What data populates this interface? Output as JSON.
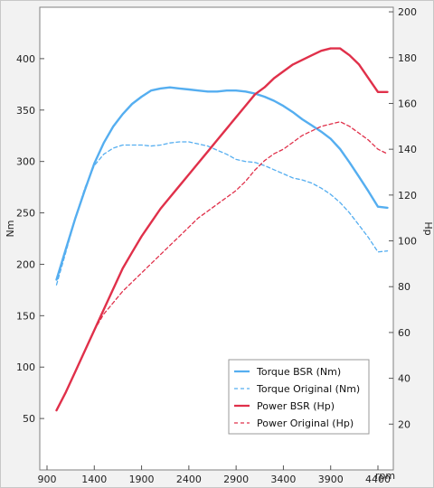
{
  "chart_data": {
    "type": "line",
    "xlabel": "rpm",
    "ylabel_left": "Nm",
    "ylabel_right": "Hp",
    "x_ticks": [
      900,
      1400,
      1900,
      2400,
      2900,
      3400,
      3900,
      4400
    ],
    "y_left_ticks": [
      50,
      100,
      150,
      200,
      250,
      300,
      350,
      400
    ],
    "y_right_ticks": [
      20,
      40,
      60,
      80,
      100,
      120,
      140,
      160,
      180,
      200
    ],
    "xlim": [
      900,
      4600
    ],
    "ylim_left": [
      0,
      450
    ],
    "ylim_right": [
      0,
      202
    ],
    "grid": false,
    "legend_position": "bottom-right",
    "colors": {
      "torque": "#55aef0",
      "power": "#e0304a"
    },
    "series": [
      {
        "name": "Torque BSR (Nm)",
        "axis": "left",
        "style": "solid",
        "color": "#55aef0",
        "x": [
          1000,
          1100,
          1200,
          1300,
          1400,
          1500,
          1600,
          1700,
          1800,
          1900,
          2000,
          2100,
          2200,
          2300,
          2400,
          2500,
          2600,
          2700,
          2800,
          2900,
          3000,
          3100,
          3200,
          3300,
          3400,
          3500,
          3600,
          3700,
          3800,
          3900,
          4000,
          4100,
          4200,
          4300,
          4400,
          4500
        ],
        "y": [
          185,
          215,
          245,
          272,
          298,
          318,
          334,
          346,
          356,
          363,
          369,
          371,
          372,
          371,
          370,
          369,
          368,
          368,
          369,
          369,
          368,
          366,
          363,
          359,
          354,
          348,
          341,
          335,
          329,
          322,
          312,
          299,
          285,
          271,
          256,
          255
        ]
      },
      {
        "name": "Torque Original (Nm)",
        "axis": "left",
        "style": "dashed",
        "color": "#55aef0",
        "x": [
          1000,
          1100,
          1200,
          1300,
          1400,
          1500,
          1600,
          1700,
          1800,
          1900,
          2000,
          2100,
          2200,
          2300,
          2400,
          2500,
          2600,
          2700,
          2800,
          2900,
          3000,
          3100,
          3200,
          3300,
          3400,
          3500,
          3600,
          3700,
          3800,
          3900,
          4000,
          4100,
          4200,
          4300,
          4400,
          4500
        ],
        "y": [
          180,
          212,
          245,
          274,
          296,
          307,
          313,
          316,
          316,
          316,
          315,
          316,
          318,
          319,
          319,
          317,
          315,
          311,
          307,
          302,
          300,
          299,
          296,
          292,
          288,
          284,
          282,
          279,
          274,
          268,
          260,
          250,
          238,
          226,
          212,
          213
        ]
      },
      {
        "name": "Power BSR (Hp)",
        "axis": "right",
        "style": "solid",
        "color": "#e0304a",
        "x": [
          1000,
          1100,
          1200,
          1300,
          1400,
          1500,
          1600,
          1700,
          1800,
          1900,
          2000,
          2100,
          2200,
          2300,
          2400,
          2500,
          2600,
          2700,
          2800,
          2900,
          3000,
          3100,
          3200,
          3300,
          3400,
          3500,
          3600,
          3700,
          3800,
          3900,
          4000,
          4100,
          4200,
          4300,
          4400,
          4500
        ],
        "y": [
          26,
          34,
          43,
          52,
          61,
          70,
          79,
          88,
          95,
          102,
          108,
          114,
          119,
          124,
          129,
          134,
          139,
          144,
          149,
          154,
          159,
          164,
          167,
          171,
          174,
          177,
          179,
          181,
          183,
          184,
          184,
          181,
          177,
          171,
          165,
          165
        ]
      },
      {
        "name": "Power Original (Hp)",
        "axis": "right",
        "style": "dashed",
        "color": "#e0304a",
        "x": [
          1000,
          1100,
          1200,
          1300,
          1400,
          1500,
          1600,
          1700,
          1800,
          1900,
          2000,
          2100,
          2200,
          2300,
          2400,
          2500,
          2600,
          2700,
          2800,
          2900,
          3000,
          3100,
          3200,
          3300,
          3400,
          3500,
          3600,
          3700,
          3800,
          3900,
          4000,
          4100,
          4200,
          4300,
          4400,
          4500
        ],
        "y": [
          26,
          34,
          43,
          52,
          61,
          68,
          73,
          78,
          82,
          86,
          90,
          94,
          98,
          102,
          106,
          110,
          113,
          116,
          119,
          122,
          126,
          131,
          135,
          138,
          140,
          143,
          146,
          148,
          150,
          151,
          152,
          150,
          147,
          144,
          140,
          138
        ]
      }
    ]
  }
}
